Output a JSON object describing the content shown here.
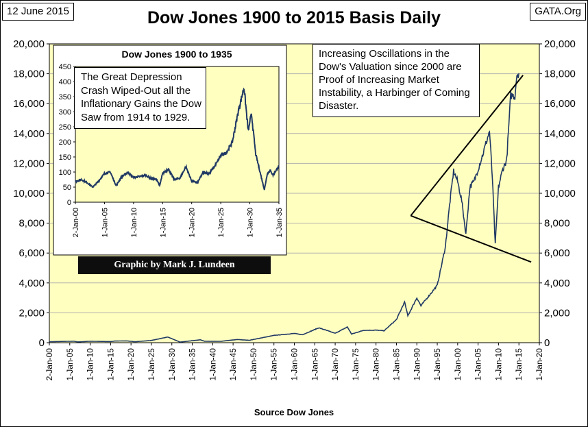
{
  "header": {
    "date_label": "12 June 2015",
    "source_label": "GATA.Org",
    "title": "Dow Jones 1900 to 2015 Basis Daily"
  },
  "annotation": "Increasing Oscillations in the Dow's Valuation since 2000 are Proof of Increasing Market Instability, a Harbinger of Coming Disaster.",
  "credit": "Graphic by Mark J. Lundeen",
  "colors": {
    "plot_background": "#ffffc0",
    "series": "#1f3864",
    "grid": "#b0b0b0",
    "trend_lines": "#000000"
  },
  "chart_data": [
    {
      "type": "line",
      "title": "Dow Jones 1900 to 2015 Basis Daily",
      "xlabel": "Source Dow Jones",
      "ylabel": "",
      "ylim": [
        0,
        20000
      ],
      "xlim": [
        1900,
        2020
      ],
      "x_tick_labels": [
        "2-Jan-00",
        "1-Jan-05",
        "1-Jan-10",
        "1-Jan-15",
        "1-Jan-20",
        "1-Jan-25",
        "1-Jan-30",
        "1-Jan-35",
        "1-Jan-40",
        "1-Jan-45",
        "1-Jan-50",
        "1-Jan-55",
        "1-Jan-60",
        "1-Jan-65",
        "1-Jan-70",
        "1-Jan-75",
        "1-Jan-80",
        "1-Jan-85",
        "1-Jan-90",
        "1-Jan-95",
        "1-Jan-00",
        "1-Jan-05",
        "1-Jan-10",
        "1-Jan-15",
        "1-Jan-20"
      ],
      "y_tick_labels": [
        "0",
        "2,000",
        "4,000",
        "6,000",
        "8,000",
        "10,000",
        "12,000",
        "14,000",
        "16,000",
        "18,000",
        "20,000"
      ],
      "grid": "horizontal",
      "secondary_y_axis": true,
      "series": [
        {
          "x": [
            1900,
            1906,
            1907,
            1910,
            1915,
            1916,
            1919,
            1921,
            1925,
            1929,
            1932,
            1937,
            1938,
            1942,
            1946,
            1949,
            1955,
            1960,
            1962,
            1966,
            1970,
            1973,
            1974,
            1977,
            1980,
            1982,
            1985,
            1987,
            1987.8,
            1990,
            1991,
            1995,
            1996,
            1997,
            1998,
            1999,
            2000,
            2001,
            2002,
            2003,
            2004,
            2006,
            2007.8,
            2008.5,
            2009.2,
            2010,
            2011,
            2012,
            2013,
            2014,
            2014.5,
            2015
          ],
          "y": [
            66,
            100,
            53,
            98,
            74,
            110,
            119,
            64,
            150,
            381,
            41,
            194,
            99,
            93,
            212,
            161,
            488,
            618,
            536,
            995,
            631,
            1051,
            577,
            831,
            838,
            800,
            1546,
            2722,
            1800,
            3000,
            2470,
            3838,
            5117,
            6448,
            9184,
            11497,
            10787,
            9500,
            7286,
            10453,
            10783,
            12463,
            14164,
            11000,
            6547,
            10428,
            11577,
            12217,
            16576,
            16500,
            17977,
            18040
          ]
        },
        {
          "x": [
            1988.5,
            2016
          ],
          "y": [
            8500,
            17900
          ]
        },
        {
          "x": [
            1988.5,
            2018
          ],
          "y": [
            8500,
            5400
          ]
        }
      ]
    },
    {
      "type": "line",
      "title": "Dow Jones 1900 to 1935",
      "annotation": "The Great Depression Crash Wiped-Out all the Inflationary Gains the Dow Saw from 1914 to 1929.",
      "ylim": [
        0,
        450
      ],
      "xlim": [
        1900,
        1935
      ],
      "x_tick_labels": [
        "2-Jan-00",
        "1-Jan-05",
        "1-Jan-10",
        "1-Jan-15",
        "1-Jan-20",
        "1-Jan-25",
        "1-Jan-30",
        "1-Jan-35"
      ],
      "y_tick_labels": [
        "0",
        "50",
        "100",
        "150",
        "200",
        "250",
        "300",
        "350",
        "400",
        "450"
      ],
      "series": [
        {
          "x": [
            1900,
            1901,
            1902,
            1903,
            1904,
            1905,
            1906,
            1907,
            1908,
            1909,
            1910,
            1911,
            1912,
            1913,
            1914,
            1914.5,
            1915,
            1916,
            1917,
            1918,
            1919,
            1920,
            1921,
            1922,
            1923,
            1924,
            1925,
            1926,
            1927,
            1928,
            1929,
            1929.7,
            1929.9,
            1930,
            1930.3,
            1931,
            1932.5,
            1933,
            1933.5,
            1934,
            1935
          ],
          "y": [
            68,
            75,
            65,
            50,
            70,
            95,
            100,
            55,
            85,
            99,
            82,
            85,
            90,
            78,
            75,
            55,
            95,
            110,
            75,
            80,
            118,
            70,
            65,
            100,
            95,
            120,
            155,
            165,
            200,
            300,
            381,
            240,
            250,
            270,
            290,
            160,
            41,
            95,
            105,
            90,
            120
          ]
        }
      ]
    }
  ]
}
